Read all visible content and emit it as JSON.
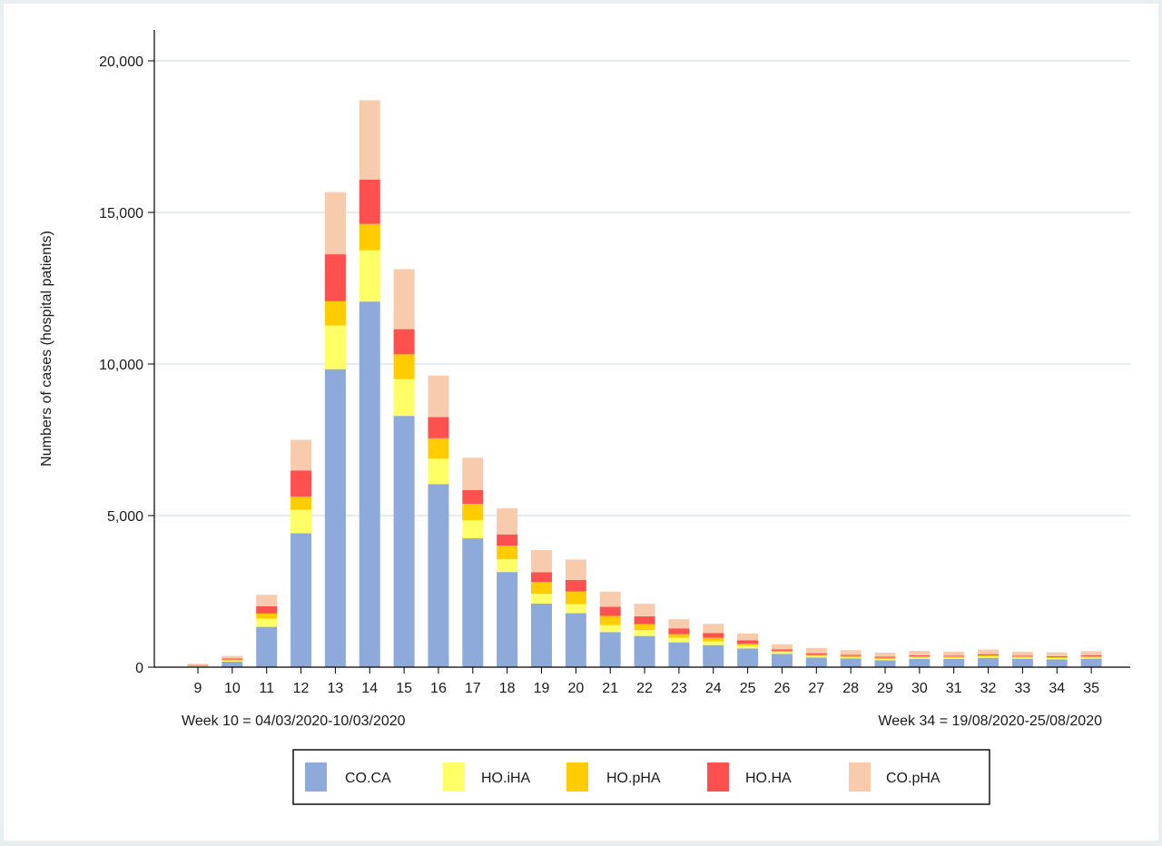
{
  "chart_data": {
    "type": "bar",
    "stacked": true,
    "title": "",
    "xlabel": "",
    "ylabel": "Numbers of cases (hospital patients)",
    "ylim": [
      0,
      20000
    ],
    "yticks": [
      0,
      5000,
      10000,
      15000,
      20000
    ],
    "ytick_labels": [
      "0",
      "5,000",
      "10,000",
      "15,000",
      "20,000"
    ],
    "grid": true,
    "categories": [
      "9",
      "10",
      "11",
      "12",
      "13",
      "14",
      "15",
      "16",
      "17",
      "18",
      "19",
      "20",
      "21",
      "22",
      "23",
      "24",
      "25",
      "26",
      "27",
      "28",
      "29",
      "30",
      "31",
      "32",
      "33",
      "34",
      "35"
    ],
    "series": [
      {
        "name": "CO.CA",
        "color": "#8eaadb",
        "values": [
          20,
          180,
          1330,
          4420,
          9830,
          12060,
          8290,
          6040,
          4250,
          3140,
          2100,
          1780,
          1160,
          1030,
          820,
          730,
          620,
          440,
          320,
          290,
          230,
          270,
          270,
          310,
          280,
          260,
          280
        ]
      },
      {
        "name": "HO.iHA",
        "color": "#ffff66",
        "values": [
          10,
          40,
          270,
          770,
          1440,
          1690,
          1210,
          840,
          600,
          420,
          320,
          300,
          230,
          190,
          150,
          120,
          90,
          60,
          50,
          40,
          40,
          50,
          40,
          40,
          40,
          40,
          40
        ]
      },
      {
        "name": "HO.pHA",
        "color": "#ffcc00",
        "values": [
          20,
          30,
          170,
          440,
          800,
          870,
          820,
          670,
          540,
          450,
          390,
          420,
          300,
          200,
          120,
          120,
          70,
          40,
          40,
          40,
          40,
          40,
          40,
          40,
          30,
          30,
          40
        ]
      },
      {
        "name": "HO.HA",
        "color": "#ff5050",
        "values": [
          20,
          40,
          240,
          860,
          1550,
          1460,
          830,
          700,
          450,
          370,
          320,
          380,
          300,
          260,
          190,
          160,
          110,
          50,
          50,
          40,
          40,
          30,
          30,
          40,
          30,
          30,
          30
        ]
      },
      {
        "name": "CO.pHA",
        "color": "#f8cbad",
        "values": [
          40,
          80,
          380,
          1010,
          2050,
          2620,
          1980,
          1370,
          1070,
          860,
          730,
          670,
          500,
          410,
          300,
          300,
          220,
          170,
          170,
          150,
          130,
          150,
          130,
          150,
          130,
          130,
          140
        ]
      }
    ],
    "legend": {
      "position": "bottom",
      "entries": [
        "CO.CA",
        "HO.iHA",
        "HO.pHA",
        "HO.HA",
        "CO.pHA"
      ]
    },
    "annotations": [
      "Week 10 = 04/03/2020-10/03/2020",
      "Week 34 = 19/08/2020-25/08/2020"
    ]
  }
}
